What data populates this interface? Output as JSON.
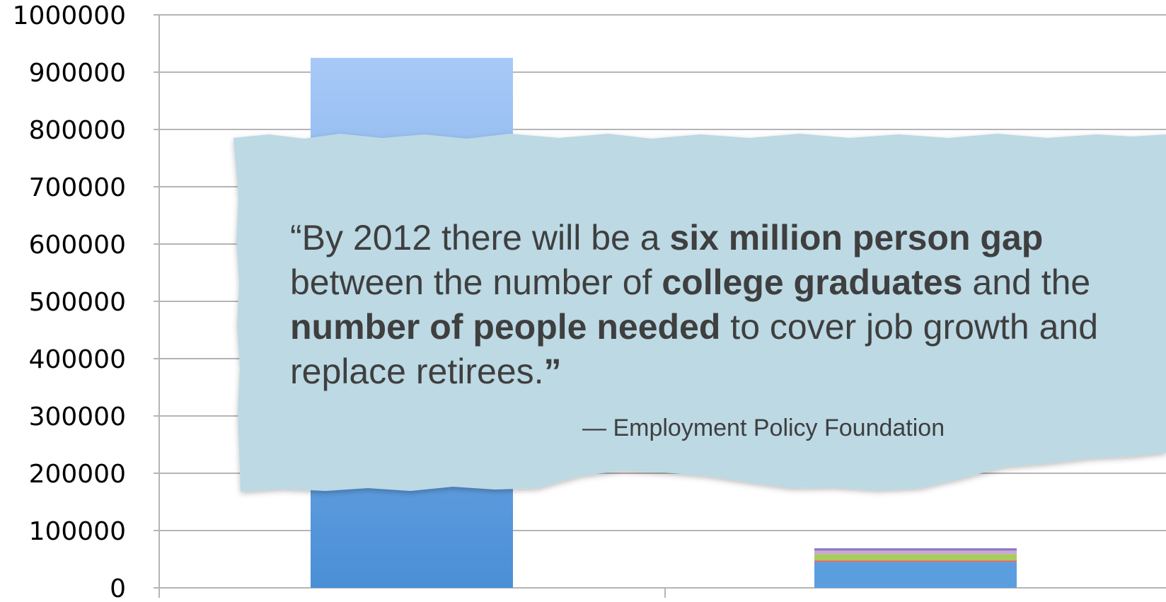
{
  "chart_data": {
    "type": "bar",
    "ylim": [
      0,
      1000000
    ],
    "yticks": [
      "1000000",
      "900000",
      "800000",
      "700000",
      "600000",
      "500000",
      "400000",
      "300000",
      "200000",
      "100000",
      "0"
    ],
    "grid": true,
    "bars": [
      {
        "segments": [
          {
            "value": 925000,
            "color": "#4f96d9"
          }
        ]
      },
      {
        "segments": [
          {
            "value": 45000,
            "color": "#5b9ee0"
          },
          {
            "value": 3000,
            "color": "#e06b6b"
          },
          {
            "value": 11000,
            "color": "#a8cc5e"
          },
          {
            "value": 6000,
            "color": "#c9a8d8"
          },
          {
            "value": 4000,
            "color": "#8a78c0"
          }
        ]
      }
    ]
  },
  "quote": {
    "open": "“By 2012 there will be a ",
    "b1": "six million person gap",
    "t2": " between the number of ",
    "b2": "college graduates",
    "t3": " and the ",
    "b3": "number of people needed",
    "t4": " to cover job growth and replace retirees.",
    "close": "”",
    "source": "— Employment Policy Foundation"
  },
  "colors": {
    "card": "#bcd9e4",
    "grid": "#b5b5b5",
    "text": "#3f3f3f"
  }
}
